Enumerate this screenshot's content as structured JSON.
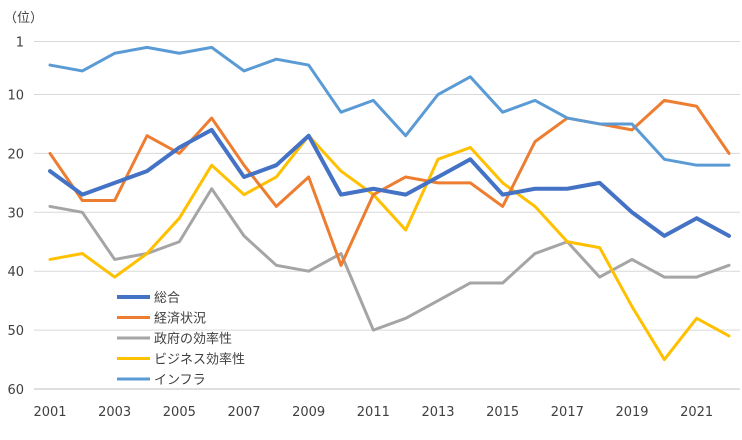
{
  "chart_data": {
    "type": "line",
    "title": "",
    "ylabel": "（位）",
    "xlabel": "",
    "ylim": [
      1,
      60
    ],
    "y_inverted": true,
    "yticks": [
      1,
      10,
      20,
      30,
      40,
      50,
      60
    ],
    "x": [
      2001,
      2002,
      2003,
      2004,
      2005,
      2006,
      2007,
      2008,
      2009,
      2010,
      2011,
      2012,
      2013,
      2014,
      2015,
      2016,
      2017,
      2018,
      2019,
      2020,
      2021,
      2022
    ],
    "xticks": [
      2001,
      2003,
      2005,
      2007,
      2009,
      2011,
      2013,
      2015,
      2017,
      2019,
      2021
    ],
    "grid": true,
    "legend_position": "bottom-left",
    "series": [
      {
        "name": "総合",
        "color": "#4472C4",
        "width": 4,
        "values": [
          23,
          27,
          25,
          23,
          19,
          16,
          24,
          22,
          17,
          27,
          26,
          27,
          24,
          21,
          27,
          26,
          26,
          25,
          30,
          34,
          31,
          34
        ]
      },
      {
        "name": "経済状況",
        "color": "#ED7D31",
        "width": 3,
        "values": [
          20,
          28,
          28,
          17,
          20,
          14,
          22,
          29,
          24,
          39,
          27,
          24,
          25,
          25,
          29,
          18,
          14,
          15,
          16,
          11,
          12,
          20
        ]
      },
      {
        "name": "政府の効率性",
        "color": "#A5A5A5",
        "width": 3,
        "values": [
          29,
          30,
          38,
          37,
          35,
          26,
          34,
          39,
          40,
          37,
          50,
          48,
          45,
          42,
          42,
          37,
          35,
          41,
          38,
          41,
          41,
          39
        ]
      },
      {
        "name": "ビジネス効率性",
        "color": "#FFC000",
        "width": 3,
        "values": [
          38,
          37,
          41,
          37,
          31,
          22,
          27,
          24,
          17,
          23,
          27,
          33,
          21,
          19,
          25,
          29,
          35,
          36,
          46,
          55,
          48,
          51
        ]
      },
      {
        "name": "インフラ",
        "color": "#5B9BD5",
        "width": 3,
        "values": [
          5,
          6,
          3,
          2,
          3,
          2,
          6,
          4,
          5,
          13,
          11,
          17,
          10,
          7,
          13,
          11,
          14,
          15,
          15,
          21,
          22,
          22
        ]
      }
    ]
  }
}
